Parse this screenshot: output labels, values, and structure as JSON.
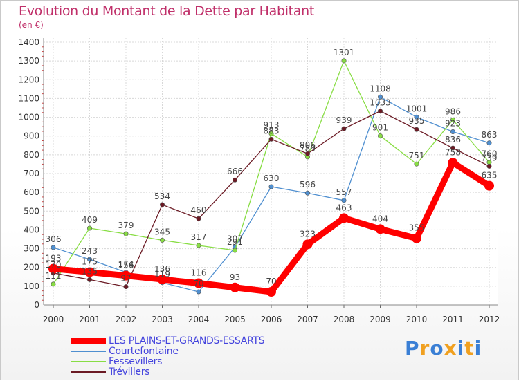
{
  "title": "Evolution du Montant de la Dette par Habitant",
  "subtitle": "(en €)",
  "brand": {
    "letters": [
      "P",
      "r",
      "o",
      "x",
      "i",
      "t",
      "i"
    ],
    "colors": [
      "#3a7fd5",
      "#f0a020",
      "#3a7fd5",
      "#f0a020",
      "#3a7fd5",
      "#f0a020",
      "#3a7fd5"
    ]
  },
  "chart_data": {
    "type": "line",
    "x": [
      "2000",
      "2001",
      "2002",
      "2003",
      "2004",
      "2005",
      "2006",
      "2007",
      "2008",
      "2009",
      "2010",
      "2011",
      "2012"
    ],
    "ylim": [
      0,
      1400
    ],
    "yticks": [
      0,
      100,
      200,
      300,
      400,
      500,
      600,
      700,
      800,
      900,
      1000,
      1100,
      1200,
      1300,
      1400
    ],
    "grid": true,
    "legend_position": "bottom-left",
    "series": [
      {
        "name": "LES PLAINS-ET-GRANDS-ESSARTS",
        "color": "#ff0000",
        "values": [
          193,
          175,
          156,
          136,
          116,
          93,
          70,
          323,
          463,
          404,
          355,
          758,
          635
        ]
      },
      {
        "name": "Courtefontaine",
        "color": "#4f8fd0",
        "values": [
          306,
          243,
          174,
          119,
          70,
          307,
          630,
          596,
          557,
          1108,
          1001,
          923,
          863
        ]
      },
      {
        "name": "Fessevillers",
        "color": "#88dd44",
        "values": [
          111,
          409,
          379,
          345,
          317,
          291,
          913,
          789,
          1301,
          901,
          751,
          986,
          760
        ]
      },
      {
        "name": "Trévillers",
        "color": "#6b1a24",
        "values": [
          170,
          135,
          97,
          534,
          460,
          666,
          883,
          806,
          939,
          1033,
          935,
          836,
          739
        ]
      }
    ]
  }
}
